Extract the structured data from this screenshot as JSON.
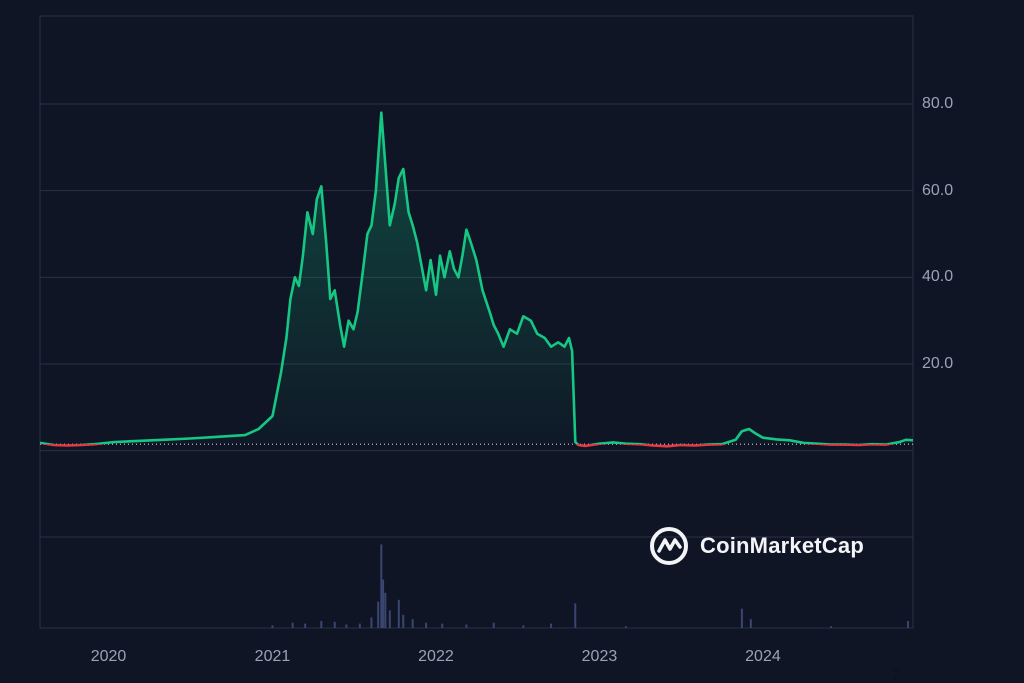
{
  "chart_data": {
    "type": "area",
    "baseline": 1.5,
    "ylim": [
      -20,
      100
    ],
    "y_ticks": [
      "20.0",
      "40.0",
      "60.0",
      "80.0"
    ],
    "y_tick_values": [
      20,
      40,
      60,
      80
    ],
    "x_ticks": [
      "2020",
      "2021",
      "2022",
      "2023",
      "2024"
    ],
    "x_tick_values": [
      "2020-01-01",
      "2021-01-01",
      "2022-01-01",
      "2023-01-01",
      "2024-01-01"
    ],
    "x_range": [
      "2019-08-01",
      "2024-12-01"
    ],
    "colors": {
      "up": "#16c784",
      "down": "#ea3943",
      "grid": "#2a3142",
      "volume": "#3a4670",
      "background": "#0f1525"
    },
    "price": [
      [
        "2019-08-01",
        1.8
      ],
      [
        "2019-09-01",
        1.3
      ],
      [
        "2019-10-01",
        1.2
      ],
      [
        "2019-11-01",
        1.3
      ],
      [
        "2019-12-01",
        1.5
      ],
      [
        "2020-01-15",
        2.0
      ],
      [
        "2020-03-01",
        2.2
      ],
      [
        "2020-05-01",
        2.5
      ],
      [
        "2020-07-01",
        2.8
      ],
      [
        "2020-09-01",
        3.2
      ],
      [
        "2020-11-01",
        3.6
      ],
      [
        "2020-12-01",
        5.0
      ],
      [
        "2021-01-01",
        8.0
      ],
      [
        "2021-01-20",
        18.0
      ],
      [
        "2021-02-01",
        26.0
      ],
      [
        "2021-02-10",
        35.0
      ],
      [
        "2021-02-20",
        40.0
      ],
      [
        "2021-03-01",
        38.0
      ],
      [
        "2021-03-10",
        45.0
      ],
      [
        "2021-03-20",
        55.0
      ],
      [
        "2021-04-01",
        50.0
      ],
      [
        "2021-04-10",
        58.0
      ],
      [
        "2021-04-20",
        61.0
      ],
      [
        "2021-05-01",
        48.0
      ],
      [
        "2021-05-10",
        35.0
      ],
      [
        "2021-05-20",
        37.0
      ],
      [
        "2021-06-01",
        29.0
      ],
      [
        "2021-06-10",
        24.0
      ],
      [
        "2021-06-20",
        30.0
      ],
      [
        "2021-07-01",
        28.0
      ],
      [
        "2021-07-10",
        32.0
      ],
      [
        "2021-07-20",
        40.0
      ],
      [
        "2021-08-01",
        50.0
      ],
      [
        "2021-08-10",
        52.0
      ],
      [
        "2021-08-20",
        60.0
      ],
      [
        "2021-09-01",
        78.0
      ],
      [
        "2021-09-10",
        66.0
      ],
      [
        "2021-09-20",
        52.0
      ],
      [
        "2021-10-01",
        57.0
      ],
      [
        "2021-10-10",
        63.0
      ],
      [
        "2021-10-20",
        65.0
      ],
      [
        "2021-11-01",
        55.0
      ],
      [
        "2021-11-10",
        52.0
      ],
      [
        "2021-11-20",
        48.0
      ],
      [
        "2021-12-01",
        42.0
      ],
      [
        "2021-12-10",
        37.0
      ],
      [
        "2021-12-20",
        44.0
      ],
      [
        "2022-01-01",
        36.0
      ],
      [
        "2022-01-10",
        45.0
      ],
      [
        "2022-01-20",
        40.0
      ],
      [
        "2022-02-01",
        46.0
      ],
      [
        "2022-02-10",
        42.0
      ],
      [
        "2022-02-20",
        40.0
      ],
      [
        "2022-03-01",
        45.0
      ],
      [
        "2022-03-10",
        51.0
      ],
      [
        "2022-03-20",
        48.0
      ],
      [
        "2022-04-01",
        44.0
      ],
      [
        "2022-04-15",
        37.0
      ],
      [
        "2022-05-01",
        32.0
      ],
      [
        "2022-05-10",
        29.0
      ],
      [
        "2022-05-20",
        27.0
      ],
      [
        "2022-06-01",
        24.0
      ],
      [
        "2022-06-15",
        28.0
      ],
      [
        "2022-07-01",
        27.0
      ],
      [
        "2022-07-15",
        31.0
      ],
      [
        "2022-08-01",
        30.0
      ],
      [
        "2022-08-15",
        27.0
      ],
      [
        "2022-09-01",
        26.0
      ],
      [
        "2022-09-15",
        24.0
      ],
      [
        "2022-10-01",
        25.0
      ],
      [
        "2022-10-15",
        24.0
      ],
      [
        "2022-10-25",
        26.0
      ],
      [
        "2022-11-01",
        23.0
      ],
      [
        "2022-11-08",
        2.0
      ],
      [
        "2022-11-15",
        1.3
      ],
      [
        "2022-12-01",
        1.1
      ],
      [
        "2023-01-01",
        1.6
      ],
      [
        "2023-02-01",
        1.9
      ],
      [
        "2023-03-01",
        1.6
      ],
      [
        "2023-04-01",
        1.5
      ],
      [
        "2023-05-01",
        1.2
      ],
      [
        "2023-06-01",
        1.0
      ],
      [
        "2023-07-01",
        1.3
      ],
      [
        "2023-08-01",
        1.2
      ],
      [
        "2023-09-01",
        1.4
      ],
      [
        "2023-10-01",
        1.5
      ],
      [
        "2023-11-01",
        2.5
      ],
      [
        "2023-11-15",
        4.5
      ],
      [
        "2023-12-01",
        5.0
      ],
      [
        "2023-12-15",
        4.0
      ],
      [
        "2024-01-01",
        3.0
      ],
      [
        "2024-02-01",
        2.6
      ],
      [
        "2024-03-01",
        2.4
      ],
      [
        "2024-04-01",
        1.8
      ],
      [
        "2024-05-01",
        1.6
      ],
      [
        "2024-06-01",
        1.4
      ],
      [
        "2024-07-01",
        1.4
      ],
      [
        "2024-08-01",
        1.3
      ],
      [
        "2024-09-01",
        1.5
      ],
      [
        "2024-10-01",
        1.4
      ],
      [
        "2024-11-01",
        2.0
      ],
      [
        "2024-11-15",
        2.5
      ],
      [
        "2024-12-01",
        2.4
      ]
    ],
    "volume": [
      [
        "2021-01-01",
        0.03
      ],
      [
        "2021-02-15",
        0.06
      ],
      [
        "2021-03-15",
        0.05
      ],
      [
        "2021-04-20",
        0.08
      ],
      [
        "2021-05-20",
        0.07
      ],
      [
        "2021-06-15",
        0.04
      ],
      [
        "2021-07-15",
        0.05
      ],
      [
        "2021-08-10",
        0.12
      ],
      [
        "2021-08-25",
        0.3
      ],
      [
        "2021-09-01",
        0.95
      ],
      [
        "2021-09-05",
        0.55
      ],
      [
        "2021-09-10",
        0.4
      ],
      [
        "2021-09-20",
        0.2
      ],
      [
        "2021-10-10",
        0.32
      ],
      [
        "2021-10-20",
        0.15
      ],
      [
        "2021-11-10",
        0.1
      ],
      [
        "2021-12-10",
        0.06
      ],
      [
        "2022-01-15",
        0.05
      ],
      [
        "2022-03-10",
        0.04
      ],
      [
        "2022-05-10",
        0.06
      ],
      [
        "2022-07-15",
        0.03
      ],
      [
        "2022-09-15",
        0.05
      ],
      [
        "2022-11-08",
        0.28
      ],
      [
        "2023-03-01",
        0.02
      ],
      [
        "2023-11-15",
        0.22
      ],
      [
        "2023-12-05",
        0.1
      ],
      [
        "2024-06-01",
        0.02
      ],
      [
        "2024-11-20",
        0.08
      ]
    ]
  },
  "watermark": {
    "text": "CoinMarketCap"
  },
  "corner_note": "2"
}
